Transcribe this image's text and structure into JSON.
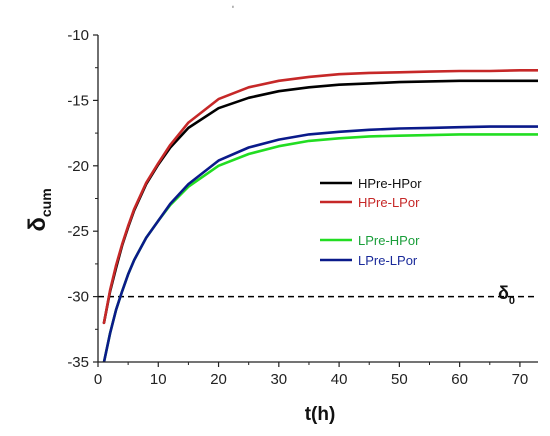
{
  "chart_data": {
    "type": "line",
    "title": "",
    "xlabel": "t(h)",
    "ylabel_main": "δ",
    "ylabel_sub": "cum",
    "xlim": [
      0,
      73
    ],
    "ylim": [
      -35,
      -10
    ],
    "xticks": [
      0,
      10,
      20,
      30,
      40,
      50,
      60,
      70
    ],
    "yticks": [
      -35,
      -30,
      -25,
      -20,
      -15,
      -10
    ],
    "grid": false,
    "legend_position": "center-right",
    "reference_line": {
      "y": -30,
      "label_main": "δ",
      "label_sub": "0",
      "style": "dashed",
      "color": "#000000"
    },
    "series": [
      {
        "name": "HPre-HPor",
        "color": "#000000",
        "x": [
          1,
          2,
          3,
          4,
          5,
          6,
          8,
          10,
          12,
          15,
          20,
          25,
          30,
          35,
          40,
          45,
          50,
          55,
          60,
          65,
          70,
          73
        ],
        "y": [
          -32.0,
          -29.6,
          -27.8,
          -26.1,
          -24.7,
          -23.4,
          -21.4,
          -19.9,
          -18.6,
          -17.1,
          -15.6,
          -14.8,
          -14.3,
          -14.0,
          -13.8,
          -13.7,
          -13.6,
          -13.55,
          -13.5,
          -13.5,
          -13.5,
          -13.5
        ]
      },
      {
        "name": "HPre-LPor",
        "color": "#c62828",
        "x": [
          1,
          2,
          3,
          4,
          5,
          6,
          8,
          10,
          12,
          15,
          20,
          25,
          30,
          35,
          40,
          45,
          50,
          55,
          60,
          65,
          70,
          73
        ],
        "y": [
          -32.0,
          -29.5,
          -27.6,
          -26.0,
          -24.6,
          -23.3,
          -21.3,
          -19.8,
          -18.4,
          -16.7,
          -14.9,
          -14.0,
          -13.5,
          -13.2,
          -13.0,
          -12.9,
          -12.85,
          -12.8,
          -12.75,
          -12.75,
          -12.7,
          -12.7
        ]
      },
      {
        "name": "LPre-HPor",
        "color": "#22dd22",
        "x": [
          1,
          2,
          3,
          4,
          5,
          6,
          8,
          10,
          12,
          15,
          20,
          25,
          30,
          35,
          40,
          45,
          50,
          55,
          60,
          65,
          70,
          73
        ],
        "y": [
          -35.0,
          -32.8,
          -31.0,
          -29.6,
          -28.3,
          -27.2,
          -25.5,
          -24.2,
          -23.0,
          -21.6,
          -20.0,
          -19.1,
          -18.5,
          -18.1,
          -17.9,
          -17.75,
          -17.7,
          -17.65,
          -17.6,
          -17.6,
          -17.6,
          -17.6
        ]
      },
      {
        "name": "LPre-LPor",
        "color": "#0a1a8a",
        "x": [
          1,
          2,
          3,
          4,
          5,
          6,
          8,
          10,
          12,
          15,
          20,
          25,
          30,
          35,
          40,
          45,
          50,
          55,
          60,
          65,
          70,
          73
        ],
        "y": [
          -35.0,
          -32.8,
          -31.0,
          -29.6,
          -28.3,
          -27.2,
          -25.5,
          -24.2,
          -22.9,
          -21.4,
          -19.6,
          -18.6,
          -18.0,
          -17.6,
          -17.4,
          -17.25,
          -17.15,
          -17.1,
          -17.05,
          -17.0,
          -17.0,
          -17.0
        ]
      }
    ]
  },
  "page": {
    "stray_mark": "ʹ"
  }
}
